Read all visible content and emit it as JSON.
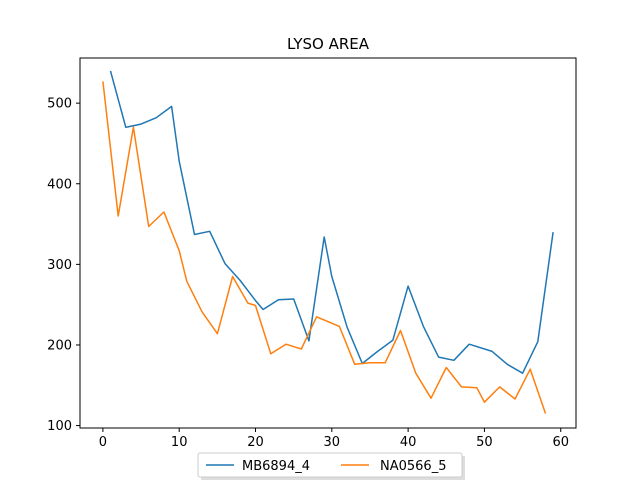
{
  "chart_data": {
    "type": "line",
    "title": "LYSO AREA",
    "xlabel": "",
    "ylabel": "",
    "xlim": [
      -3.0,
      62.0
    ],
    "ylim": [
      97,
      556
    ],
    "xticks": [
      0,
      10,
      20,
      30,
      40,
      50,
      60
    ],
    "yticks": [
      100,
      200,
      300,
      400,
      500
    ],
    "grid": false,
    "legend": {
      "placement": "bottom-center",
      "ncol": 2
    },
    "series": [
      {
        "name": "MB6894_4",
        "color": "#1f77b4",
        "x": [
          1,
          3,
          5,
          7,
          9,
          10,
          12,
          14,
          16,
          18,
          20,
          21,
          23,
          25,
          27,
          29,
          30,
          32,
          34,
          36,
          38,
          40,
          42,
          44,
          46,
          48,
          51,
          53,
          55,
          57,
          59
        ],
        "y": [
          540,
          470,
          474,
          482,
          496,
          428,
          337,
          341,
          301,
          280,
          255,
          244,
          256,
          257,
          205,
          334,
          285,
          222,
          177,
          192,
          206,
          273,
          223,
          185,
          181,
          201,
          192,
          176,
          165,
          204,
          340
        ]
      },
      {
        "name": "NA0566_5",
        "color": "#ff7f0e",
        "x": [
          0,
          2,
          4,
          6,
          8,
          10,
          11,
          13,
          15,
          17,
          19,
          20,
          22,
          24,
          26,
          28,
          31,
          33,
          35,
          37,
          39,
          41,
          43,
          45,
          47,
          49,
          50,
          52,
          54,
          56,
          58
        ],
        "y": [
          527,
          360,
          470,
          347,
          365,
          317,
          279,
          241,
          214,
          285,
          252,
          249,
          189,
          201,
          195,
          235,
          223,
          176,
          178,
          178,
          218,
          165,
          134,
          172,
          148,
          147,
          129,
          148,
          133,
          170,
          115
        ]
      }
    ]
  }
}
